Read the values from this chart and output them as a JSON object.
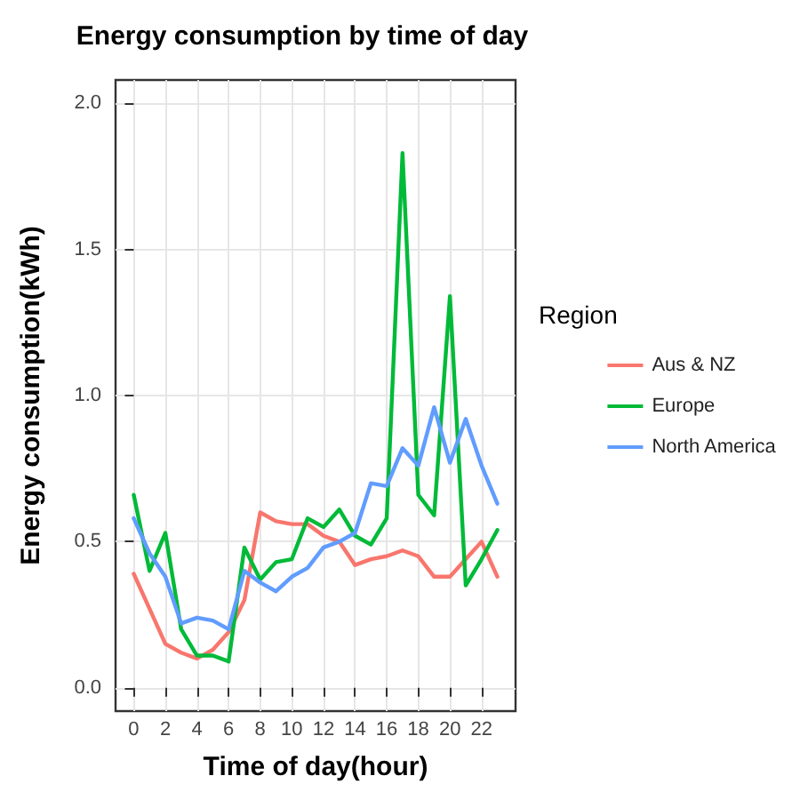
{
  "chart_data": {
    "type": "line",
    "title": "Energy consumption by time of day",
    "xlabel": "Time of day(hour)",
    "ylabel": "Energy consumption(kWh)",
    "legend_title": "Region",
    "x": [
      0,
      1,
      2,
      3,
      4,
      5,
      6,
      7,
      8,
      9,
      10,
      11,
      12,
      13,
      14,
      15,
      16,
      17,
      18,
      19,
      20,
      21,
      22,
      23
    ],
    "series": [
      {
        "name": "Aus & NZ",
        "color": "#f8766d",
        "values": [
          0.39,
          0.27,
          0.15,
          0.12,
          0.1,
          0.13,
          0.19,
          0.3,
          0.6,
          0.57,
          0.56,
          0.56,
          0.52,
          0.5,
          0.42,
          0.44,
          0.45,
          0.47,
          0.45,
          0.38,
          0.38,
          0.44,
          0.5,
          0.38
        ]
      },
      {
        "name": "Europe",
        "color": "#00ba38",
        "values": [
          0.66,
          0.4,
          0.53,
          0.2,
          0.11,
          0.11,
          0.09,
          0.48,
          0.37,
          0.43,
          0.44,
          0.58,
          0.55,
          0.61,
          0.52,
          0.49,
          0.58,
          1.83,
          0.66,
          0.59,
          1.34,
          0.35,
          0.44,
          0.54
        ]
      },
      {
        "name": "North America",
        "color": "#619cff",
        "values": [
          0.58,
          0.46,
          0.38,
          0.22,
          0.24,
          0.23,
          0.2,
          0.4,
          0.36,
          0.33,
          0.38,
          0.41,
          0.48,
          0.5,
          0.53,
          0.7,
          0.69,
          0.82,
          0.76,
          0.96,
          0.77,
          0.92,
          0.76,
          0.63
        ]
      }
    ],
    "xlim": [
      -1.15,
      24.15
    ],
    "xticks": [
      0,
      2,
      4,
      6,
      8,
      10,
      12,
      14,
      16,
      18,
      20,
      22
    ],
    "ylim": [
      -0.08,
      2.08
    ],
    "yticks": [
      {
        "value": 0,
        "label": "0.0"
      },
      0.5,
      {
        "value": 1,
        "label": "1.0"
      },
      1.5,
      {
        "value": 2,
        "label": "2.0"
      }
    ],
    "grid": true,
    "legend": "right",
    "marker": "none",
    "line_style": "solid"
  }
}
